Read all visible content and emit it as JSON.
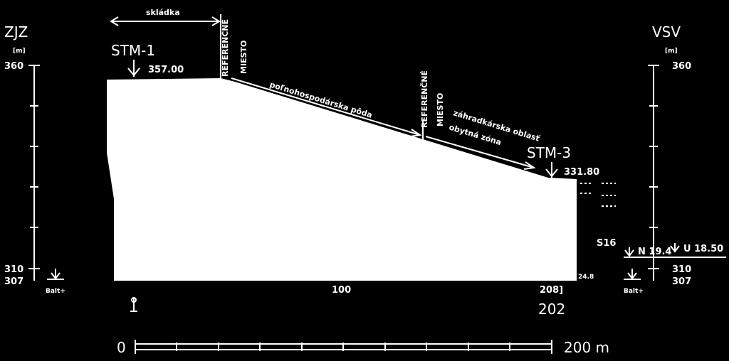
{
  "left_axis": {
    "direction": "ZJZ",
    "unit": "[m]",
    "ticks": [
      "360",
      "310",
      "307"
    ],
    "datum": "Balt+"
  },
  "right_axis": {
    "direction": "VSV",
    "unit": "[m]",
    "ticks": [
      "360",
      "310",
      "307"
    ],
    "datum": "Balt+"
  },
  "boreholes": [
    {
      "name": "STM-1",
      "elevation": "357.00"
    },
    {
      "name": "STM-3",
      "elevation": "331.80"
    }
  ],
  "zones": [
    "skládka",
    "poľnohospodárska pôda",
    "záhradkárska oblasť",
    "obytná zóna"
  ],
  "reference_points": [
    {
      "lines": [
        "REFERENČNÉ",
        "MIESTO"
      ]
    },
    {
      "lines": [
        "REFERENČNÉ",
        "MIESTO"
      ]
    }
  ],
  "annotations": [
    "S16",
    "N 19.4",
    "U 18.50",
    "24.8"
  ],
  "distances": [
    "100",
    "208]",
    "202"
  ],
  "scale_bar": {
    "start": "0",
    "end": "200 m"
  }
}
